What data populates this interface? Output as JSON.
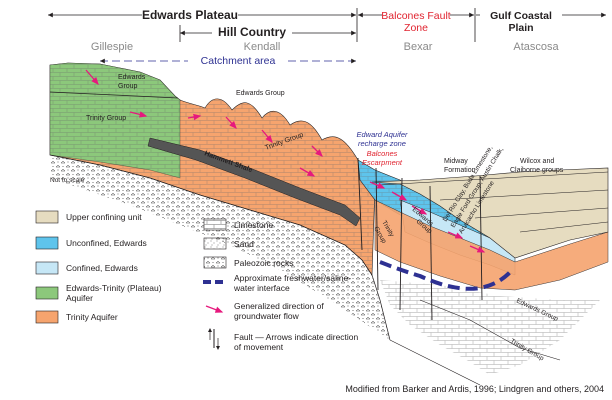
{
  "regions": {
    "edwards_plateau": "Edwards Plateau",
    "hill_country": "Hill Country",
    "balcones_fault_zone_line1": "Balcones Fault",
    "balcones_fault_zone_line2": "Zone",
    "gulf_coastal_plain_line1": "Gulf Coastal",
    "gulf_coastal_plain_line2": "Plain"
  },
  "counties": [
    "Gillespie",
    "Kendall",
    "Bexar",
    "Atascosa"
  ],
  "catchment_area": "Catchment area",
  "labels": {
    "edwards_group_1": "Edwards",
    "edwards_group_1b": "Group",
    "edwards_group_2": "Edwards Group",
    "trinity_group_1": "Trinity Group",
    "trinity_group_2": "Trinity Group",
    "hammett_shale": "Hammett Shale",
    "not_to_scale": "Not to scale",
    "recharge_zone_line1": "Edward Aquifer",
    "recharge_zone_line2": "recharge zone",
    "escarpment_line1": "Balcones",
    "escarpment_line2": "Escarpment",
    "midway_line1": "Midway",
    "midway_line2": "Formation",
    "wilcox_line1": "Wilcox and",
    "wilcox_line2": "Claiborne groups",
    "del_rio_line1": "Del Rio Clay, Buda Limestone,",
    "del_rio_line2": "Eagle Ford Group, Austin Chalk,",
    "del_rio_line3": "Anacacho Limestone",
    "trinity_group_3_line1": "Trinity",
    "trinity_group_3_line2": "Group",
    "edwards_group_3_line1": "Edwards",
    "edwards_group_3_line2": "Group",
    "edwards_group_4": "Edwards Group",
    "trinity_group_4": "Trinity Group"
  },
  "legend_left": [
    {
      "label": "Upper confining unit",
      "color": "#e6dcc0"
    },
    {
      "label": "Unconfined, Edwards",
      "color": "#5ec4ec"
    },
    {
      "label": "Confined, Edwards",
      "color": "#c6e7f6"
    },
    {
      "label_line1": "Edwards-Trinity (Plateau)",
      "label_line2": "Aquifer",
      "color": "#8cc87b"
    },
    {
      "label": "Trinity Aquifer",
      "color": "#f6a46e"
    }
  ],
  "legend_right": {
    "limestone": "Limestone",
    "sand": "Sand",
    "paleozoic": "Paleozoic rocks",
    "interface_line1": "Approximate freshwater/saline-",
    "interface_line2": "water interface",
    "flow_line1": "Generalized direction of",
    "flow_line2": "groundwater flow",
    "fault_line1": "Fault — Arrows indicate direction",
    "fault_line2": "of movement"
  },
  "colors": {
    "upper_confining": "#e6dcc0",
    "unconfined_edwards": "#5ec4ec",
    "confined_edwards": "#c6e7f6",
    "edwards_trinity": "#8cc87b",
    "trinity": "#f6a46e",
    "flow_arrow": "#e6197d",
    "interface": "#2e3192",
    "region_red": "#e0232f"
  },
  "credit": "Modified from Barker and Ardis, 1996; Lindgren and others, 2004"
}
